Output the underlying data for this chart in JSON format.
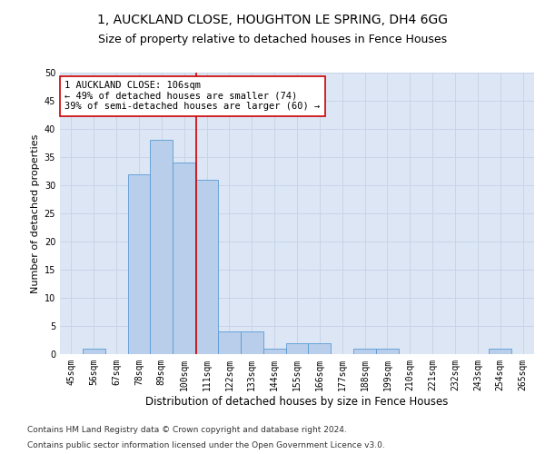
{
  "title1": "1, AUCKLAND CLOSE, HOUGHTON LE SPRING, DH4 6GG",
  "title2": "Size of property relative to detached houses in Fence Houses",
  "xlabel": "Distribution of detached houses by size in Fence Houses",
  "ylabel": "Number of detached properties",
  "bin_labels": [
    "45sqm",
    "56sqm",
    "67sqm",
    "78sqm",
    "89sqm",
    "100sqm",
    "111sqm",
    "122sqm",
    "133sqm",
    "144sqm",
    "155sqm",
    "166sqm",
    "177sqm",
    "188sqm",
    "199sqm",
    "210sqm",
    "221sqm",
    "232sqm",
    "243sqm",
    "254sqm",
    "265sqm"
  ],
  "bar_heights": [
    0,
    1,
    0,
    32,
    38,
    34,
    31,
    4,
    4,
    1,
    2,
    2,
    0,
    1,
    1,
    0,
    0,
    0,
    0,
    1,
    0
  ],
  "bar_color": "#b8ceea",
  "bar_edge_color": "#5b9bd5",
  "vline_x": 5.55,
  "vline_color": "#cc0000",
  "annotation_text": "1 AUCKLAND CLOSE: 106sqm\n← 49% of detached houses are smaller (74)\n39% of semi-detached houses are larger (60) →",
  "annotation_box_color": "#ffffff",
  "annotation_box_edge_color": "#cc0000",
  "ylim": [
    0,
    50
  ],
  "yticks": [
    0,
    5,
    10,
    15,
    20,
    25,
    30,
    35,
    40,
    45,
    50
  ],
  "grid_color": "#c8d4e8",
  "bg_color": "#dce6f5",
  "footnote1": "Contains HM Land Registry data © Crown copyright and database right 2024.",
  "footnote2": "Contains public sector information licensed under the Open Government Licence v3.0.",
  "title1_fontsize": 10,
  "title2_fontsize": 9,
  "xlabel_fontsize": 8.5,
  "ylabel_fontsize": 8,
  "tick_fontsize": 7,
  "annotation_fontsize": 7.5,
  "footnote_fontsize": 6.5
}
